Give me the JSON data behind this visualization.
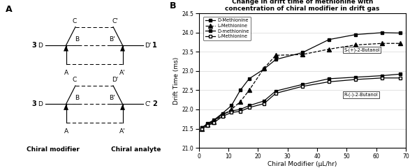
{
  "title": "Change in drift time of methionine with\nconcentration of chiral modifier in drift gas",
  "xlabel": "Chiral Modifier (μL/hr)",
  "ylabel": "Drift Time (ms)",
  "xlim": [
    0,
    70
  ],
  "ylim": [
    21.0,
    24.5
  ],
  "yticks": [
    21.0,
    21.5,
    22.0,
    22.5,
    23.0,
    23.5,
    24.0,
    24.5
  ],
  "xticks": [
    0,
    10,
    20,
    30,
    40,
    50,
    60,
    70
  ],
  "S_D_x": [
    1,
    3,
    5,
    8,
    11,
    14,
    17,
    22,
    26,
    35,
    44,
    53,
    62,
    68
  ],
  "S_D_y": [
    21.52,
    21.64,
    21.72,
    21.9,
    22.1,
    22.5,
    22.8,
    23.05,
    23.3,
    23.48,
    23.82,
    23.95,
    24.0,
    23.99
  ],
  "S_L_x": [
    1,
    3,
    5,
    8,
    11,
    14,
    17,
    22,
    26,
    35,
    44,
    53,
    62,
    68
  ],
  "S_L_y": [
    21.5,
    21.6,
    21.68,
    21.85,
    22.0,
    22.2,
    22.5,
    23.07,
    23.41,
    23.43,
    23.57,
    23.68,
    23.72,
    23.72
  ],
  "R_D_x": [
    1,
    3,
    5,
    8,
    11,
    14,
    17,
    22,
    26,
    35,
    44,
    53,
    62,
    68
  ],
  "R_D_y": [
    21.52,
    21.62,
    21.7,
    21.88,
    21.96,
    22.0,
    22.1,
    22.22,
    22.48,
    22.65,
    22.8,
    22.84,
    22.88,
    22.92
  ],
  "R_L_x": [
    1,
    3,
    5,
    8,
    11,
    14,
    17,
    22,
    26,
    35,
    44,
    53,
    62,
    68
  ],
  "R_L_y": [
    21.5,
    21.58,
    21.65,
    21.82,
    21.92,
    21.95,
    22.05,
    22.15,
    22.42,
    22.6,
    22.72,
    22.78,
    22.82,
    22.82
  ],
  "legend_S_D": "D-Methionine",
  "legend_S_L": "L-Methionine",
  "legend_R_D": "D-methionine",
  "legend_R_L": "L-Methionine",
  "label_S": "S-(+)-2-Butanol",
  "label_R": "R-(-)-2-Butanol"
}
